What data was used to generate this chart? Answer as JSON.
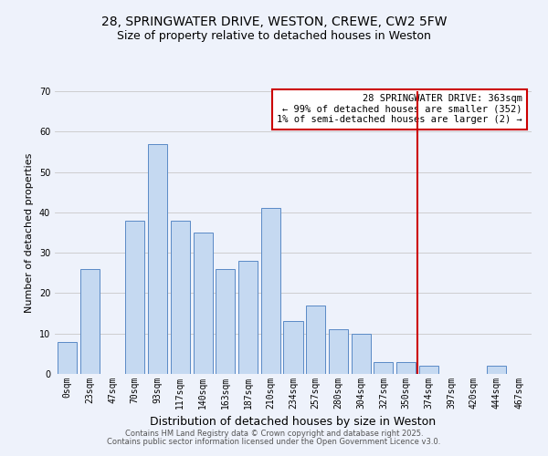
{
  "title": "28, SPRINGWATER DRIVE, WESTON, CREWE, CW2 5FW",
  "subtitle": "Size of property relative to detached houses in Weston",
  "xlabel": "Distribution of detached houses by size in Weston",
  "ylabel": "Number of detached properties",
  "bar_labels": [
    "0sqm",
    "23sqm",
    "47sqm",
    "70sqm",
    "93sqm",
    "117sqm",
    "140sqm",
    "163sqm",
    "187sqm",
    "210sqm",
    "234sqm",
    "257sqm",
    "280sqm",
    "304sqm",
    "327sqm",
    "350sqm",
    "374sqm",
    "397sqm",
    "420sqm",
    "444sqm",
    "467sqm"
  ],
  "bar_values": [
    8,
    26,
    0,
    38,
    57,
    38,
    35,
    26,
    28,
    41,
    13,
    17,
    11,
    10,
    3,
    3,
    2,
    0,
    0,
    2,
    0
  ],
  "bar_color": "#c5d9f1",
  "bar_edge_color": "#5a8ac6",
  "ylim": [
    0,
    70
  ],
  "yticks": [
    0,
    10,
    20,
    30,
    40,
    50,
    60,
    70
  ],
  "grid_color": "#c8c8c8",
  "background_color": "#eef2fb",
  "vline_color": "#cc0000",
  "annotation_text": "28 SPRINGWATER DRIVE: 363sqm\n← 99% of detached houses are smaller (352)\n1% of semi-detached houses are larger (2) →",
  "annotation_box_edge": "#cc0000",
  "footer_line1": "Contains HM Land Registry data © Crown copyright and database right 2025.",
  "footer_line2": "Contains public sector information licensed under the Open Government Licence v3.0.",
  "title_fontsize": 10,
  "subtitle_fontsize": 9,
  "xlabel_fontsize": 9,
  "ylabel_fontsize": 8,
  "tick_fontsize": 7,
  "annotation_fontsize": 7.5,
  "footer_fontsize": 6
}
